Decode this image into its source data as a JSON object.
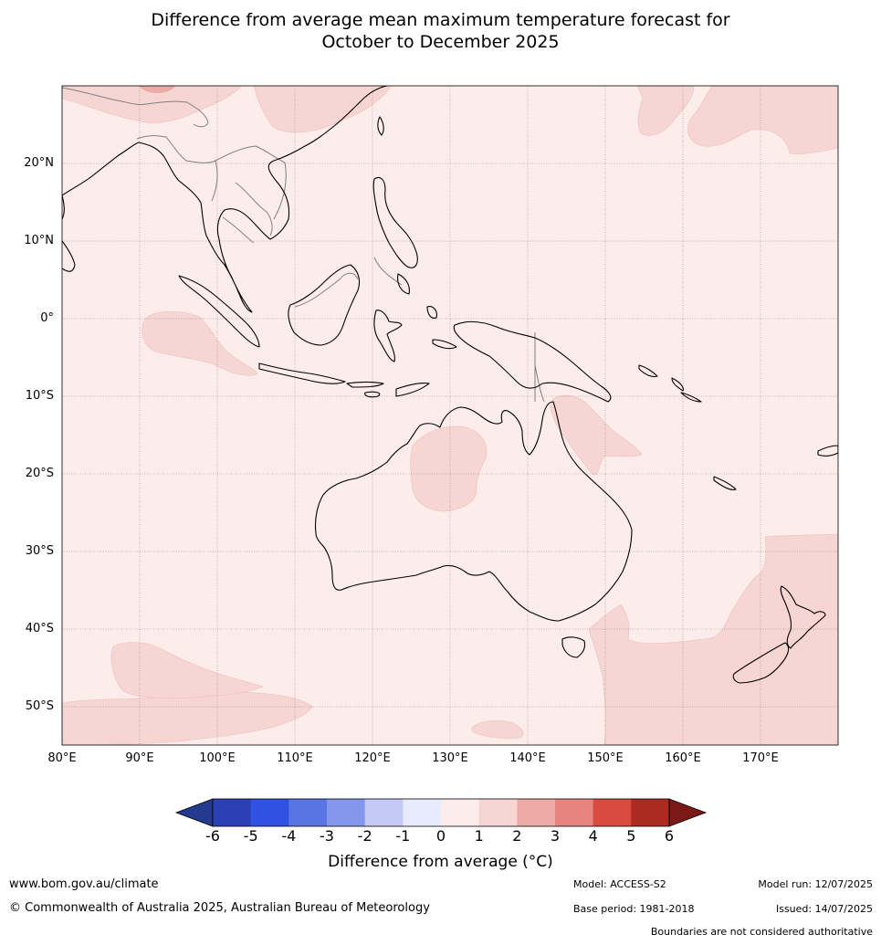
{
  "title_line1": "Difference from average mean maximum temperature forecast for",
  "title_line2": "October to December 2025",
  "lat_labels": [
    "20°N",
    "10°N",
    "0°",
    "10°S",
    "20°S",
    "30°S",
    "40°S",
    "50°S"
  ],
  "lon_labels": [
    "80°E",
    "90°E",
    "100°E",
    "110°E",
    "120°E",
    "130°E",
    "140°E",
    "150°E",
    "160°E",
    "170°E"
  ],
  "legend": {
    "ticks": [
      "-6",
      "-5",
      "-4",
      "-3",
      "-2",
      "-1",
      "0",
      "1",
      "2",
      "3",
      "4",
      "5",
      "6"
    ],
    "colors": [
      "#233a8f",
      "#2a40b4",
      "#3151e2",
      "#5a74e3",
      "#8597ec",
      "#c2c9f5",
      "#e8ebfb",
      "#fcecea",
      "#f6d5d3",
      "#edaaa6",
      "#e8847d",
      "#d94a3f",
      "#ab2a22",
      "#7a1a16"
    ],
    "label": "Difference from average (°C)"
  },
  "map_colors": {
    "background_0_1": "#fcecea",
    "anomaly_1_2": "#f6d5d3",
    "anomaly_2_3": "#edaaa6",
    "coastline": "#000000",
    "border": "#808080"
  },
  "footer": {
    "website": "www.bom.gov.au/climate",
    "copyright": "© Commonwealth of Australia 2025, Australian Bureau of Meteorology",
    "model": "Model: ACCESS-S2",
    "base_period": "Base period: 1981-2018",
    "model_run": "Model run: 12/07/2025",
    "issued": "Issued: 14/07/2025",
    "disclaimer": "Boundaries are not considered authoritative"
  }
}
